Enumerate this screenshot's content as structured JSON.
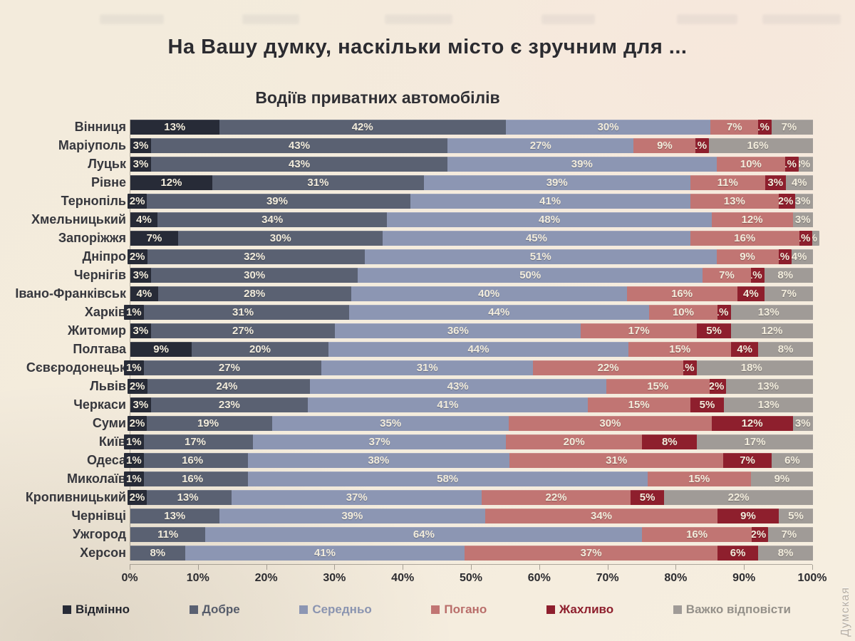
{
  "page": {
    "title": "На Вашу думку, наскільки місто є зручним для ...",
    "subtitle": "Водіїв приватних автомобілів",
    "watermark": "Думская"
  },
  "colors": {
    "background": "#f3ebdc",
    "bar_label_text": "#f2ecdc",
    "city_label_text": "#36373d",
    "axis_text": "#2c2c30"
  },
  "chart_data": {
    "type": "bar",
    "orientation": "horizontal",
    "stacked": true,
    "unit": "%",
    "xlim": [
      0,
      100
    ],
    "x_ticks": [
      "0%",
      "10%",
      "20%",
      "30%",
      "40%",
      "50%",
      "60%",
      "70%",
      "80%",
      "90%",
      "100%"
    ],
    "legend_position": "bottom",
    "series": [
      {
        "name": "Відмінно",
        "key": "vidminno",
        "color": "#272b37",
        "legend_text_color": "#23252d"
      },
      {
        "name": "Добре",
        "key": "dobre",
        "color": "#5a6172",
        "legend_text_color": "#565c6a"
      },
      {
        "name": "Середньо",
        "key": "seredno",
        "color": "#8c96b3",
        "legend_text_color": "#8a94b0"
      },
      {
        "name": "Погано",
        "key": "pogano",
        "color": "#c17573",
        "legend_text_color": "#b96e6a"
      },
      {
        "name": "Жахливо",
        "key": "zhakhlyvo",
        "color": "#8e1f2d",
        "legend_text_color": "#8e1f2d"
      },
      {
        "name": "Важко відповісти",
        "key": "vazhko-vidpovisty",
        "color": "#a09b97",
        "legend_text_color": "#949089"
      }
    ],
    "rows": [
      {
        "city": "Вінниця",
        "values": [
          13,
          42,
          30,
          7,
          1,
          7
        ]
      },
      {
        "city": "Маріуполь",
        "values": [
          3,
          43,
          27,
          9,
          1,
          16
        ]
      },
      {
        "city": "Луцьк",
        "values": [
          3,
          43,
          39,
          10,
          1,
          3
        ]
      },
      {
        "city": "Рівне",
        "values": [
          12,
          31,
          39,
          11,
          3,
          4
        ]
      },
      {
        "city": "Тернопіль",
        "values": [
          2,
          39,
          41,
          13,
          2,
          3
        ]
      },
      {
        "city": "Хмельницький",
        "values": [
          4,
          34,
          48,
          12,
          null,
          3
        ]
      },
      {
        "city": "Запоріжжя",
        "values": [
          7,
          30,
          45,
          16,
          1,
          1
        ]
      },
      {
        "city": "Дніпро",
        "values": [
          2,
          32,
          51,
          9,
          1,
          4
        ]
      },
      {
        "city": "Чернігів",
        "values": [
          3,
          30,
          50,
          7,
          1,
          8
        ]
      },
      {
        "city": "Івано-Франківськ",
        "values": [
          4,
          28,
          40,
          16,
          4,
          7
        ]
      },
      {
        "city": "Харків",
        "values": [
          1,
          31,
          44,
          10,
          1,
          13
        ]
      },
      {
        "city": "Житомир",
        "values": [
          3,
          27,
          36,
          17,
          5,
          12
        ]
      },
      {
        "city": "Полтава",
        "values": [
          9,
          20,
          44,
          15,
          4,
          8
        ]
      },
      {
        "city": "Сєвєродонецьк",
        "values": [
          1,
          27,
          31,
          22,
          1,
          18
        ]
      },
      {
        "city": "Львів",
        "values": [
          2,
          24,
          43,
          15,
          2,
          13
        ]
      },
      {
        "city": "Черкаси",
        "values": [
          3,
          23,
          41,
          15,
          5,
          13
        ]
      },
      {
        "city": "Суми",
        "values": [
          2,
          19,
          35,
          30,
          12,
          3
        ]
      },
      {
        "city": "Київ",
        "values": [
          1,
          17,
          37,
          20,
          8,
          17
        ]
      },
      {
        "city": "Одеса",
        "values": [
          1,
          16,
          38,
          31,
          7,
          6
        ]
      },
      {
        "city": "Миколаїв",
        "values": [
          1,
          16,
          58,
          15,
          null,
          9
        ]
      },
      {
        "city": "Кропивницький",
        "values": [
          2,
          13,
          37,
          22,
          5,
          22
        ]
      },
      {
        "city": "Чернівці",
        "values": [
          null,
          13,
          39,
          34,
          9,
          5
        ]
      },
      {
        "city": "Ужгород",
        "values": [
          null,
          11,
          64,
          16,
          2,
          7
        ]
      },
      {
        "city": "Херсон",
        "values": [
          null,
          8,
          41,
          37,
          6,
          8
        ]
      }
    ]
  }
}
